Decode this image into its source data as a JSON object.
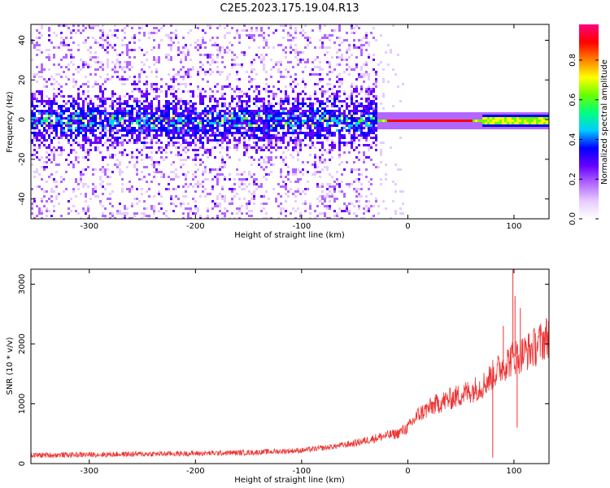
{
  "figure": {
    "title": "C2E5.2023.175.19.04.R13"
  },
  "chart_data": [
    {
      "type": "heatmap",
      "xlabel": "Height of straight line (km)",
      "ylabel": "Frequency (Hz)",
      "xlim": [
        -355,
        133
      ],
      "ylim": [
        -50,
        48
      ],
      "xticks": [
        -300,
        -200,
        -100,
        0,
        100
      ],
      "yticks": [
        -40,
        -20,
        0,
        20,
        40
      ],
      "colormap": [
        "#ffffff",
        "#e6ccff",
        "#b366ff",
        "#6600ff",
        "#0000ff",
        "#00ccff",
        "#00ff80",
        "#66ff00",
        "#ffff00",
        "#ff8000",
        "#ff0000",
        "#ff0080"
      ],
      "colorbar": {
        "label": "Normalized spectral amplitude",
        "range": [
          0.0,
          0.98
        ],
        "ticks": [
          0.0,
          0.2,
          0.4,
          0.6,
          0.8
        ]
      },
      "signal": {
        "description_values": {
          "noise_region_x": [
            -355,
            -30
          ],
          "noise_spread_hz": 25,
          "weak_region_x": [
            -355,
            -25
          ],
          "weak_spread_hz": 50,
          "strong_band_x": [
            -30,
            133
          ],
          "strong_band_center_hz": 0,
          "strong_band_width_hz": 2,
          "peak_amplitude_x": [
            -20,
            60
          ],
          "peak_amplitude": 0.95
        }
      }
    },
    {
      "type": "line",
      "xlabel": "Height of straight line (km)",
      "ylabel": "SNR (10 * v/v)",
      "xlim": [
        -355,
        133
      ],
      "ylim": [
        0,
        3250
      ],
      "xticks": [
        -300,
        -200,
        -100,
        0,
        100
      ],
      "yticks": [
        0,
        1000,
        2000,
        3000
      ],
      "color": "#ee3333",
      "series": [
        {
          "x": [
            -355,
            -300,
            -250,
            -200,
            -150,
            -100,
            -75,
            -50,
            -25,
            -10,
            0,
            10,
            25,
            50,
            70,
            80,
            90,
            100,
            110,
            120,
            133
          ],
          "values": [
            140,
            150,
            160,
            170,
            185,
            220,
            270,
            340,
            450,
            500,
            600,
            820,
            980,
            1150,
            1300,
            1480,
            1650,
            1780,
            1850,
            1950,
            2150
          ]
        }
      ],
      "spikes": {
        "x": [
          80,
          90,
          99,
          101,
          103,
          106
        ],
        "values": [
          100,
          2300,
          3250,
          2800,
          600,
          2600
        ]
      }
    }
  ]
}
